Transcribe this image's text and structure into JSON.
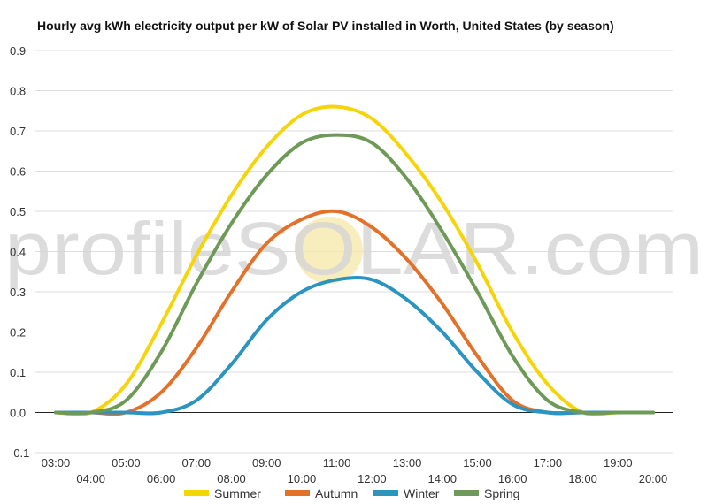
{
  "chart_data": {
    "type": "line",
    "title": "Hourly avg kWh electricity output per kW of Solar PV installed in Worth, United States (by season)",
    "watermark": "profileSOLAR.com",
    "xlabel": "",
    "ylabel": "",
    "categories": [
      "03:00",
      "04:00",
      "05:00",
      "06:00",
      "07:00",
      "08:00",
      "09:00",
      "10:00",
      "11:00",
      "12:00",
      "13:00",
      "14:00",
      "15:00",
      "16:00",
      "17:00",
      "18:00",
      "19:00",
      "20:00"
    ],
    "ylim": [
      -0.1,
      0.9
    ],
    "yticks": [
      "-0.1",
      "0.0",
      "0.1",
      "0.2",
      "0.3",
      "0.4",
      "0.5",
      "0.6",
      "0.7",
      "0.8",
      "0.9"
    ],
    "grid": true,
    "legend_position": "bottom",
    "series": [
      {
        "name": "Summer",
        "color": "#f5d50a",
        "values": [
          0.0,
          0.0,
          0.07,
          0.22,
          0.39,
          0.54,
          0.66,
          0.74,
          0.76,
          0.73,
          0.64,
          0.52,
          0.37,
          0.2,
          0.07,
          0.0,
          0.0,
          0.0
        ]
      },
      {
        "name": "Autumn",
        "color": "#e2722a",
        "values": [
          0.0,
          0.0,
          0.0,
          0.05,
          0.16,
          0.3,
          0.42,
          0.48,
          0.5,
          0.46,
          0.38,
          0.27,
          0.14,
          0.03,
          0.0,
          0.0,
          0.0,
          0.0
        ]
      },
      {
        "name": "Winter",
        "color": "#2b94c0",
        "values": [
          0.0,
          0.0,
          0.0,
          0.0,
          0.03,
          0.12,
          0.23,
          0.3,
          0.33,
          0.33,
          0.28,
          0.2,
          0.1,
          0.02,
          0.0,
          0.0,
          0.0,
          0.0
        ]
      },
      {
        "name": "Spring",
        "color": "#6e9a58",
        "values": [
          0.0,
          0.0,
          0.03,
          0.15,
          0.32,
          0.47,
          0.59,
          0.67,
          0.69,
          0.67,
          0.58,
          0.45,
          0.3,
          0.14,
          0.03,
          0.0,
          0.0,
          0.0
        ]
      }
    ]
  }
}
